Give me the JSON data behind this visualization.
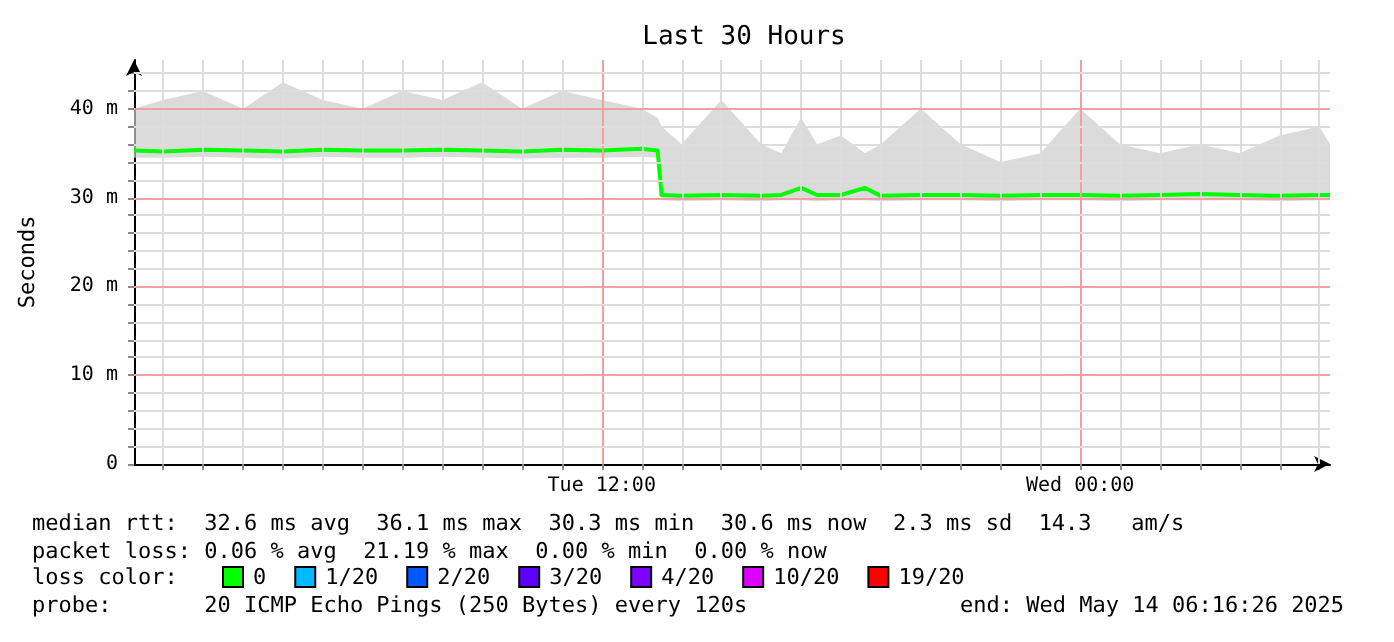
{
  "chart_data": {
    "type": "line",
    "title": "Last 30 Hours",
    "ylabel": "Seconds",
    "legend_title": "loss color:",
    "legend": "bottom",
    "grid": true,
    "marker": "none",
    "line_style": "solid",
    "x": [
      "2025-05-13T00:16",
      "2025-05-13T01:00",
      "2025-05-13T02:00",
      "2025-05-13T03:00",
      "2025-05-13T04:00",
      "2025-05-13T05:00",
      "2025-05-13T06:00",
      "2025-05-13T07:00",
      "2025-05-13T08:00",
      "2025-05-13T09:00",
      "2025-05-13T10:00",
      "2025-05-13T11:00",
      "2025-05-13T12:00",
      "2025-05-13T13:00",
      "2025-05-13T13:24",
      "2025-05-13T13:30",
      "2025-05-13T14:00",
      "2025-05-13T15:00",
      "2025-05-13T16:00",
      "2025-05-13T16:30",
      "2025-05-13T17:00",
      "2025-05-13T17:24",
      "2025-05-13T18:00",
      "2025-05-13T18:36",
      "2025-05-13T19:00",
      "2025-05-13T20:00",
      "2025-05-13T21:00",
      "2025-05-13T22:00",
      "2025-05-13T23:00",
      "2025-05-14T00:00",
      "2025-05-14T01:00",
      "2025-05-14T02:00",
      "2025-05-14T03:00",
      "2025-05-14T04:00",
      "2025-05-14T05:00",
      "2025-05-14T06:00",
      "2025-05-14T06:16"
    ],
    "xlim": [
      "2025-05-13T00:16",
      "2025-05-14T06:16"
    ],
    "xticks": [
      {
        "value": "2025-05-13T01:00",
        "label": null
      },
      {
        "value": "2025-05-13T02:00",
        "label": null
      },
      {
        "value": "2025-05-13T03:00",
        "label": null
      },
      {
        "value": "2025-05-13T04:00",
        "label": null
      },
      {
        "value": "2025-05-13T05:00",
        "label": null
      },
      {
        "value": "2025-05-13T06:00",
        "label": null
      },
      {
        "value": "2025-05-13T07:00",
        "label": null
      },
      {
        "value": "2025-05-13T08:00",
        "label": null
      },
      {
        "value": "2025-05-13T09:00",
        "label": null
      },
      {
        "value": "2025-05-13T10:00",
        "label": null
      },
      {
        "value": "2025-05-13T11:00",
        "label": null
      },
      {
        "value": "2025-05-13T12:00",
        "label": "Tue 12:00"
      },
      {
        "value": "2025-05-13T13:00",
        "label": null
      },
      {
        "value": "2025-05-13T14:00",
        "label": null
      },
      {
        "value": "2025-05-13T15:00",
        "label": null
      },
      {
        "value": "2025-05-13T16:00",
        "label": null
      },
      {
        "value": "2025-05-13T17:00",
        "label": null
      },
      {
        "value": "2025-05-13T18:00",
        "label": null
      },
      {
        "value": "2025-05-13T19:00",
        "label": null
      },
      {
        "value": "2025-05-13T20:00",
        "label": null
      },
      {
        "value": "2025-05-13T21:00",
        "label": null
      },
      {
        "value": "2025-05-13T22:00",
        "label": null
      },
      {
        "value": "2025-05-13T23:00",
        "label": null
      },
      {
        "value": "2025-05-14T00:00",
        "label": "Wed 00:00"
      },
      {
        "value": "2025-05-14T01:00",
        "label": null
      },
      {
        "value": "2025-05-14T02:00",
        "label": null
      },
      {
        "value": "2025-05-14T03:00",
        "label": null
      },
      {
        "value": "2025-05-14T04:00",
        "label": null
      },
      {
        "value": "2025-05-14T05:00",
        "label": null
      },
      {
        "value": "2025-05-14T06:00",
        "label": null
      }
    ],
    "ylim": [
      0,
      45.5
    ],
    "yticks": [
      0,
      {
        "value": 2,
        "label": null
      },
      {
        "value": 4,
        "label": null
      },
      {
        "value": 6,
        "label": null
      },
      {
        "value": 8,
        "label": null
      },
      {
        "value": 10,
        "label": "10 m"
      },
      {
        "value": 12,
        "label": null
      },
      {
        "value": 14,
        "label": null
      },
      {
        "value": 16,
        "label": null
      },
      {
        "value": 18,
        "label": null
      },
      {
        "value": 20,
        "label": "20 m"
      },
      {
        "value": 22,
        "label": null
      },
      {
        "value": 24,
        "label": null
      },
      {
        "value": 26,
        "label": null
      },
      {
        "value": 28,
        "label": null
      },
      {
        "value": 30,
        "label": "30 m"
      },
      {
        "value": 32,
        "label": null
      },
      {
        "value": 34,
        "label": null
      },
      {
        "value": 36,
        "label": null
      },
      {
        "value": 38,
        "label": null
      },
      {
        "value": 40,
        "label": "40 m"
      },
      {
        "value": 42,
        "label": null
      },
      {
        "value": 44,
        "label": null
      }
    ],
    "series": [
      {
        "name": "0",
        "color": "#00ff00",
        "values": [
          35.3,
          35.2,
          35.4,
          35.3,
          35.2,
          35.4,
          35.3,
          35.3,
          35.4,
          35.3,
          35.2,
          35.4,
          35.3,
          35.5,
          35.3,
          30.3,
          30.2,
          30.3,
          30.2,
          30.3,
          31.1,
          30.3,
          30.3,
          31.1,
          30.2,
          30.3,
          30.3,
          30.2,
          30.3,
          30.3,
          30.2,
          30.3,
          30.4,
          30.3,
          30.2,
          30.3,
          30.3
        ],
        "lower": [
          34.5,
          34.5,
          34.6,
          34.5,
          34.4,
          34.6,
          34.5,
          34.5,
          34.6,
          34.5,
          34.4,
          34.5,
          34.5,
          34.6,
          34.5,
          29.7,
          29.6,
          29.7,
          29.6,
          29.7,
          29.7,
          29.6,
          29.7,
          29.7,
          29.6,
          29.7,
          29.7,
          29.6,
          29.7,
          29.7,
          29.6,
          29.7,
          29.7,
          29.7,
          29.6,
          29.7,
          29.7
        ],
        "upper": [
          40,
          41,
          42,
          40,
          43,
          41,
          40,
          42,
          41,
          43,
          40,
          42,
          41,
          40,
          39,
          38,
          36,
          41,
          36,
          35,
          39,
          36,
          37,
          35,
          36,
          40,
          36,
          34,
          35,
          40,
          36,
          35,
          36,
          35,
          37,
          38,
          36
        ]
      },
      {
        "name": "1/20",
        "color": "#00b8ff",
        "values": [
          null,
          null,
          null,
          null,
          null,
          null,
          null,
          null,
          null,
          null,
          null,
          null,
          null,
          null,
          null,
          null,
          null,
          null,
          null,
          null,
          null,
          null,
          null,
          null,
          null,
          null,
          null,
          null,
          null,
          null,
          null,
          null,
          null,
          null,
          null,
          null,
          null
        ]
      },
      {
        "name": "2/20",
        "color": "#0059ff",
        "values": [
          null,
          null,
          null,
          null,
          null,
          null,
          null,
          null,
          null,
          null,
          null,
          null,
          null,
          null,
          null,
          null,
          null,
          null,
          null,
          null,
          null,
          null,
          null,
          null,
          null,
          null,
          null,
          null,
          null,
          null,
          null,
          null,
          null,
          null,
          null,
          null,
          null
        ]
      },
      {
        "name": "3/20",
        "color": "#5e00ff",
        "values": [
          null,
          null,
          null,
          null,
          null,
          null,
          null,
          null,
          null,
          null,
          null,
          null,
          null,
          null,
          null,
          null,
          null,
          null,
          null,
          null,
          null,
          null,
          null,
          null,
          null,
          null,
          null,
          null,
          null,
          null,
          null,
          null,
          null,
          null,
          null,
          null,
          null
        ]
      },
      {
        "name": "4/20",
        "color": "#7e00ff",
        "values": [
          null,
          null,
          null,
          null,
          null,
          null,
          null,
          null,
          null,
          null,
          null,
          null,
          null,
          null,
          null,
          null,
          null,
          null,
          null,
          null,
          null,
          null,
          null,
          null,
          null,
          null,
          null,
          null,
          null,
          null,
          null,
          null,
          null,
          null,
          null,
          null,
          null
        ]
      },
      {
        "name": "10/20",
        "color": "#dd00ff",
        "values": [
          null,
          null,
          null,
          null,
          null,
          null,
          null,
          null,
          null,
          null,
          null,
          null,
          null,
          null,
          null,
          null,
          null,
          null,
          null,
          null,
          null,
          null,
          null,
          null,
          null,
          null,
          null,
          null,
          null,
          null,
          null,
          null,
          null,
          null,
          null,
          null,
          null
        ]
      },
      {
        "name": "19/20",
        "color": "#ff0000",
        "values": [
          null,
          null,
          null,
          null,
          null,
          null,
          null,
          null,
          null,
          null,
          null,
          null,
          null,
          null,
          null,
          null,
          null,
          null,
          null,
          null,
          null,
          null,
          null,
          null,
          null,
          null,
          null,
          null,
          null,
          null,
          null,
          null,
          null,
          null,
          null,
          null,
          null
        ]
      }
    ],
    "annotations": [
      "median rtt:  32.6 ms avg  36.1 ms max  30.3 ms min  30.6 ms now  2.3 ms sd  14.3   am/s",
      "packet loss: 0.06 % avg  21.19 % max  0.00 % min  0.00 % now",
      "probe:       20 ICMP Echo Pings (250 Bytes) every 120s",
      "end: Wed May 14 06:16:26 2025"
    ]
  }
}
